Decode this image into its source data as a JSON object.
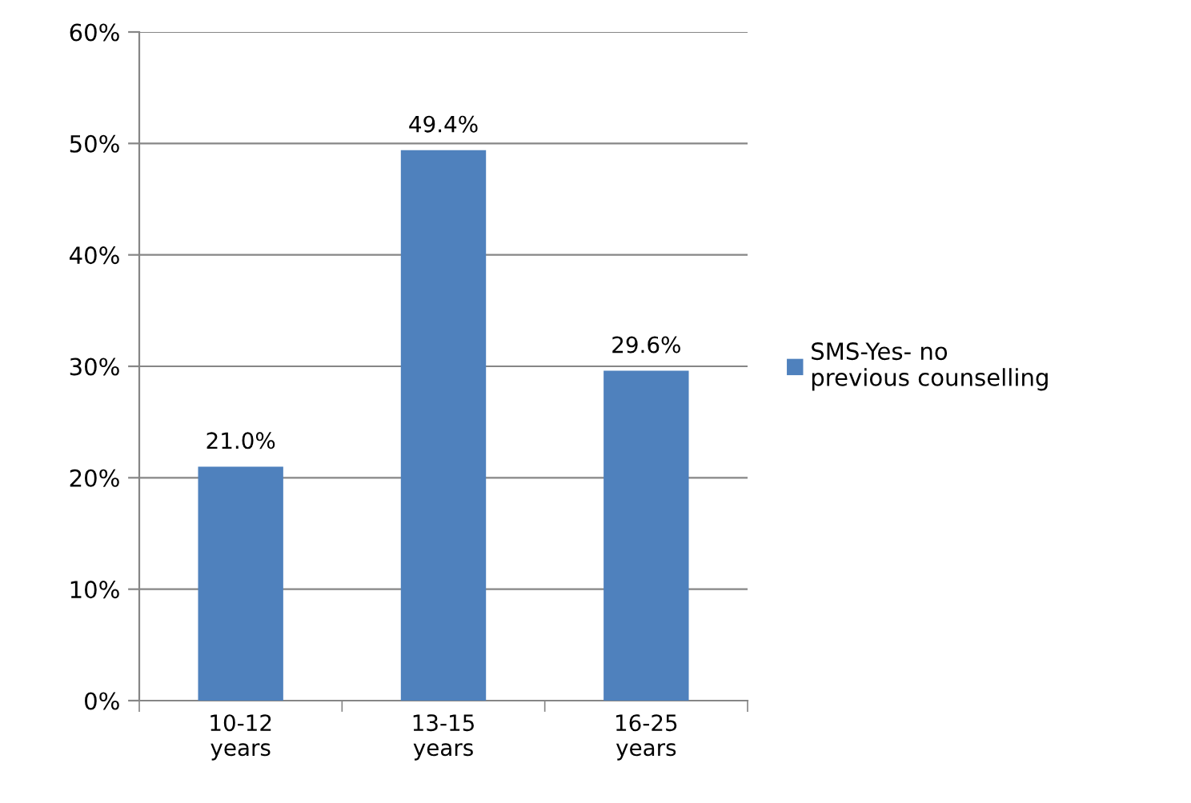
{
  "chart_data": {
    "type": "bar",
    "categories": [
      "10-12\nyears",
      "13-15\nyears",
      "16-25\nyears"
    ],
    "series": [
      {
        "name": "SMS-Yes- no\nprevious counselling",
        "color": "#4f81bd",
        "values": [
          21.0,
          49.4,
          29.6
        ],
        "value_labels": [
          "21.0%",
          "49.4%",
          "29.6%"
        ]
      }
    ],
    "ylim": [
      0,
      60
    ],
    "yticks": [
      {
        "value": 0,
        "label": "0%"
      },
      {
        "value": 10,
        "label": "10%"
      },
      {
        "value": 20,
        "label": "20%"
      },
      {
        "value": 30,
        "label": "30%"
      },
      {
        "value": 40,
        "label": "40%"
      },
      {
        "value": 50,
        "label": "50%"
      },
      {
        "value": 60,
        "label": "60%"
      }
    ],
    "grid": "y",
    "legend": "right"
  }
}
